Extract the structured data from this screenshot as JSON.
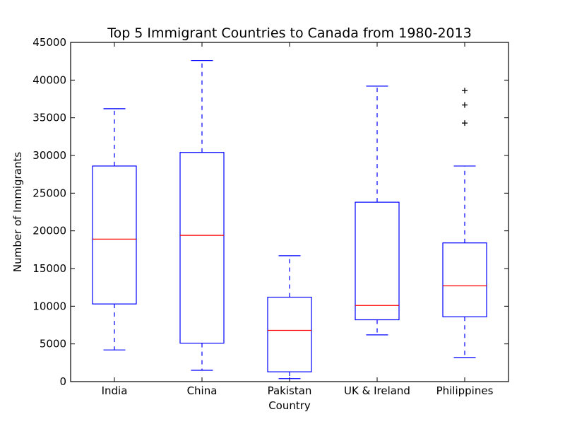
{
  "chart_data": {
    "type": "box",
    "title": "Top 5 Immigrant Countries to Canada from 1980-2013",
    "xlabel": "Country",
    "ylabel": "Number of Immigrants",
    "ylim": [
      0,
      45000
    ],
    "yticks": [
      0,
      5000,
      10000,
      15000,
      20000,
      25000,
      30000,
      35000,
      40000,
      45000
    ],
    "categories": [
      "India",
      "China",
      "Pakistan",
      "UK & Ireland",
      "Philippines"
    ],
    "boxes": [
      {
        "name": "India",
        "whisker_low": 4200,
        "q1": 10300,
        "median": 18900,
        "q3": 28600,
        "whisker_high": 36200,
        "fliers": []
      },
      {
        "name": "China",
        "whisker_low": 1500,
        "q1": 5100,
        "median": 19400,
        "q3": 30400,
        "whisker_high": 42600,
        "fliers": []
      },
      {
        "name": "Pakistan",
        "whisker_low": 400,
        "q1": 1300,
        "median": 6800,
        "q3": 11200,
        "whisker_high": 16700,
        "fliers": []
      },
      {
        "name": "UK & Ireland",
        "whisker_low": 6200,
        "q1": 8200,
        "median": 10100,
        "q3": 23800,
        "whisker_high": 39200,
        "fliers": []
      },
      {
        "name": "Philippines",
        "whisker_low": 3200,
        "q1": 8600,
        "median": 12700,
        "q3": 18400,
        "whisker_high": 28600,
        "fliers": [
          34300,
          36700,
          38600
        ]
      }
    ],
    "colors": {
      "box": "#0000ff",
      "median": "#ff0000",
      "flier": "#000000"
    },
    "grid": false,
    "legend": "none"
  }
}
